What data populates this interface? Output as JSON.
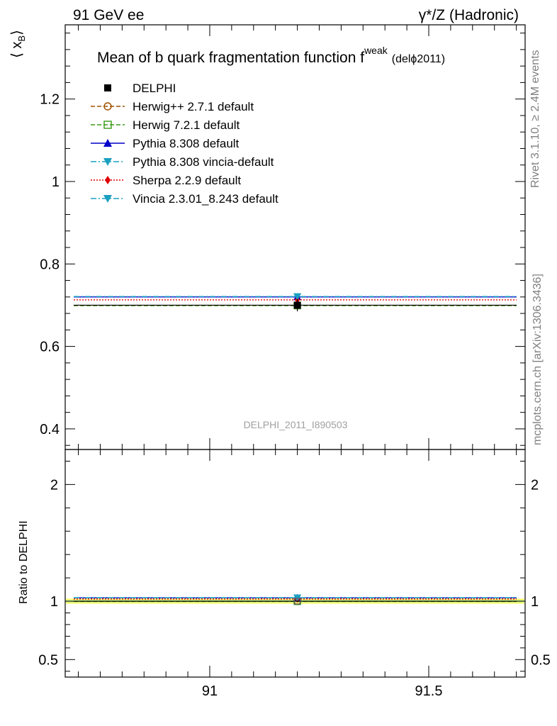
{
  "header": {
    "left": "91 GeV ee",
    "right": "γ*/Z (Hadronic)"
  },
  "side_labels": {
    "rivet": "Rivet 3.1.10, ≥ 2.4M events",
    "mcplots": "mcplots.cern.ch [arXiv:1306.3436]"
  },
  "watermark": "DELPHI_2011_I890503",
  "chart_data": {
    "type": "scatter",
    "title": "Mean of b quark fragmentation function f",
    "title_superscript": "weak",
    "title_suffix": "(delϕ2011)",
    "ylabel": "⟨ x",
    "ylabel_sub": "B",
    "ylabel_close": "⟩",
    "ratio_ylabel": "Ratio to DELPHI",
    "xlim": [
      90.67,
      91.72
    ],
    "ylim": [
      0.35,
      1.38
    ],
    "ratio_ylim": [
      0.35,
      2.3
    ],
    "x_ticks": [
      91,
      91.5
    ],
    "x_tick_labels": [
      "91",
      "91.5"
    ],
    "y_ticks": [
      0.4,
      0.6,
      0.8,
      1,
      1.2
    ],
    "y_tick_labels": [
      "0.4",
      "0.6",
      "0.8",
      "1",
      "1.2"
    ],
    "ratio_y_ticks": [
      0.5,
      1,
      2
    ],
    "ratio_y_tick_labels": [
      "0.5",
      "1",
      "2"
    ],
    "bin": [
      90.67,
      91.72
    ],
    "x_center": 91.2,
    "series": [
      {
        "name": "DELPHI",
        "y": 0.7,
        "ratio": 1.0,
        "color": "#000000",
        "marker": "square-filled",
        "line": "none"
      },
      {
        "name": "Herwig++ 2.7.1 default",
        "y": 0.699,
        "ratio": 0.999,
        "color": "#a05000",
        "marker": "circle-open",
        "line": "dashed"
      },
      {
        "name": "Herwig 7.2.1 default",
        "y": 0.699,
        "ratio": 0.999,
        "color": "#3a9a1a",
        "marker": "square-open",
        "line": "dashed"
      },
      {
        "name": "Pythia 8.308 default",
        "y": 0.72,
        "ratio": 1.029,
        "color": "#0000c8",
        "marker": "triangle-up",
        "line": "solid"
      },
      {
        "name": "Pythia 8.308 vincia-default",
        "y": 0.721,
        "ratio": 1.03,
        "color": "#1aa0c0",
        "marker": "triangle-down",
        "line": "dashdot"
      },
      {
        "name": "Sherpa 2.2.9 default",
        "y": 0.713,
        "ratio": 1.019,
        "color": "#e00000",
        "marker": "diamond",
        "line": "dotted"
      },
      {
        "name": "Vincia 2.3.01_8.243 default",
        "y": 0.721,
        "ratio": 1.03,
        "color": "#1aa0c0",
        "marker": "triangle-down",
        "line": "dashdot"
      }
    ],
    "data_error": 0.015,
    "ratio_band_color": "#ffff66",
    "ratio_band_inner": "#c8f090"
  }
}
